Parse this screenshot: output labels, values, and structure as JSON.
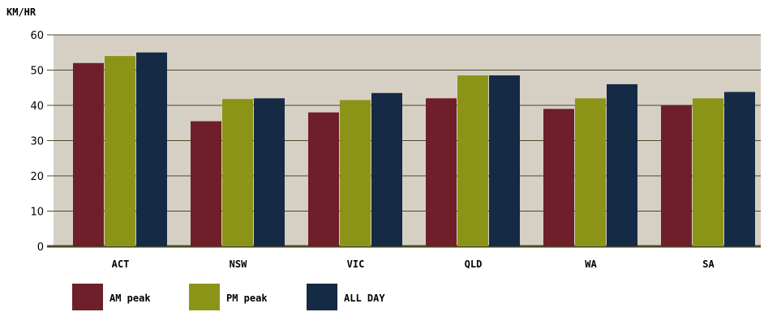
{
  "chart_data": {
    "type": "bar",
    "ylabel": "KM/HR",
    "ylim": [
      0,
      60
    ],
    "yticks": [
      0,
      10,
      20,
      30,
      40,
      50,
      60
    ],
    "grid": true,
    "legend_position": "bottom-left",
    "categories": [
      "ACT",
      "NSW",
      "VIC",
      "QLD",
      "WA",
      "SA"
    ],
    "series": [
      {
        "name": "AM peak",
        "color": "#6e1f2a",
        "values": [
          52,
          35.5,
          38,
          42,
          39,
          40
        ]
      },
      {
        "name": "PM peak",
        "color": "#8c9418",
        "values": [
          54,
          41.8,
          41.5,
          48.5,
          42,
          42
        ]
      },
      {
        "name": "ALL DAY",
        "color": "#142a45",
        "values": [
          55,
          42,
          43.5,
          48.5,
          46,
          43.8
        ]
      }
    ],
    "colors": {
      "plot_background": "#d6d0c4",
      "grid_line": "#4a4a2a",
      "axis_line": "#4a4a2a"
    }
  }
}
